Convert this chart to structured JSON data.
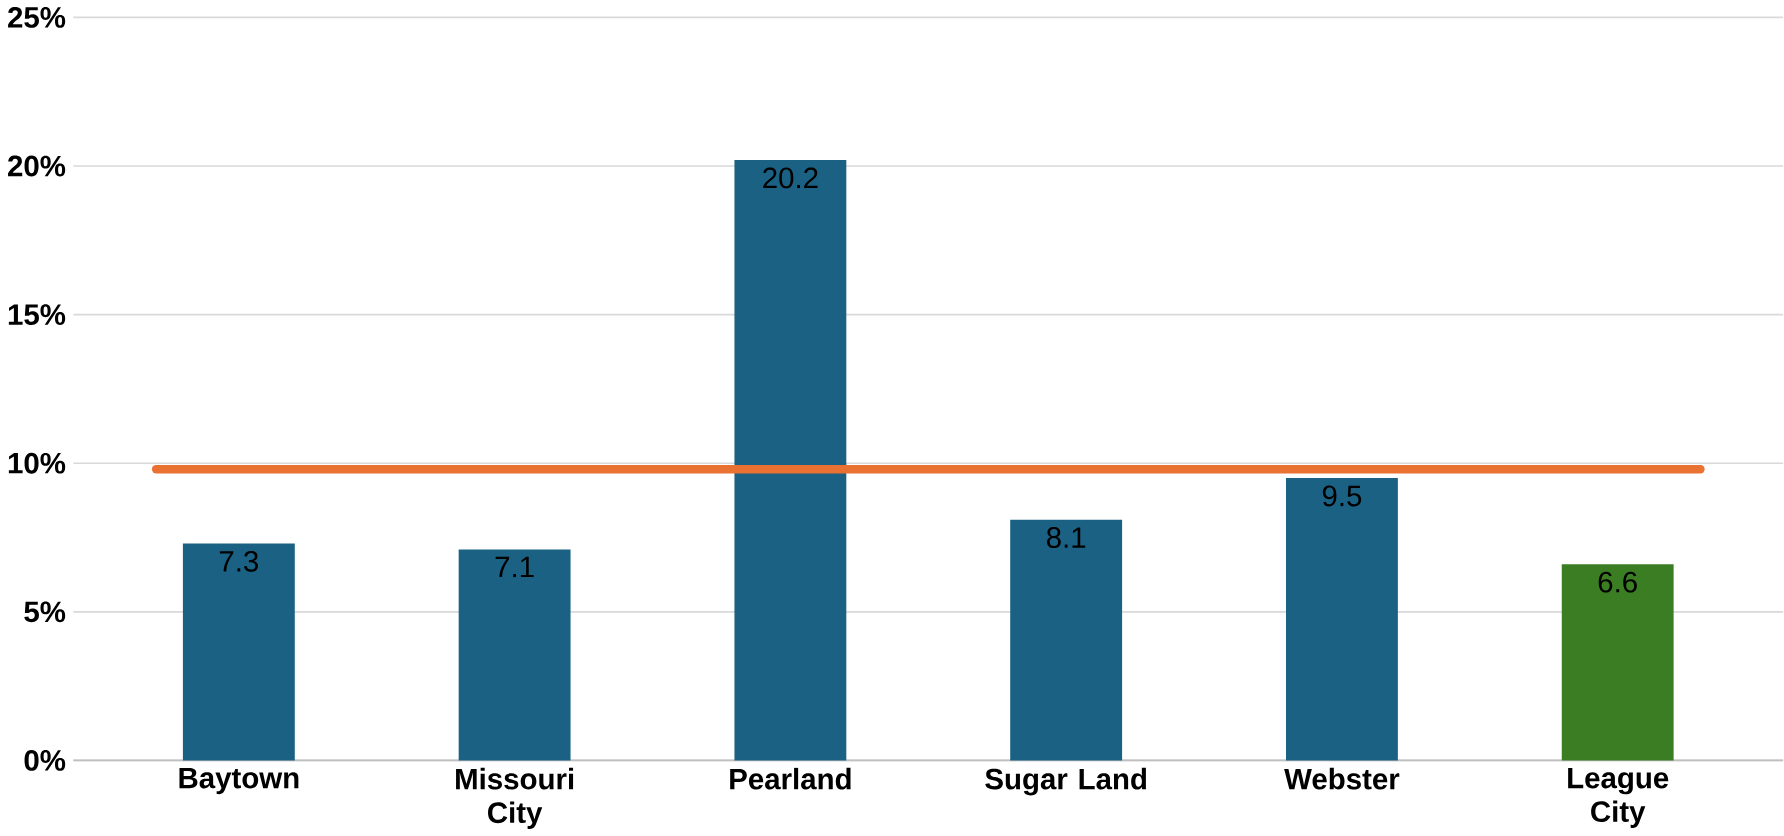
{
  "chart_data": {
    "type": "bar",
    "categories": [
      "Baytown",
      "Missouri City",
      "Pearland",
      "Sugar Land",
      "Webster",
      "League City"
    ],
    "values": [
      7.3,
      7.1,
      20.2,
      8.1,
      9.5,
      6.6
    ],
    "colors": [
      "#1a6184",
      "#1a6184",
      "#1a6184",
      "#1a6184",
      "#1a6184",
      "#3b7d23"
    ],
    "ylim": [
      0,
      25
    ],
    "yticks": [
      {
        "value": 0,
        "label": "0%"
      },
      {
        "value": 5,
        "label": "5%"
      },
      {
        "value": 10,
        "label": "10%"
      },
      {
        "value": 15,
        "label": "15%"
      },
      {
        "value": 20,
        "label": "20%"
      },
      {
        "value": 25,
        "label": "25%"
      }
    ],
    "ref_lines": [
      {
        "axis": "y",
        "value": 9.8,
        "color": "#e97132"
      }
    ],
    "data_labels": true,
    "grid": "y"
  }
}
